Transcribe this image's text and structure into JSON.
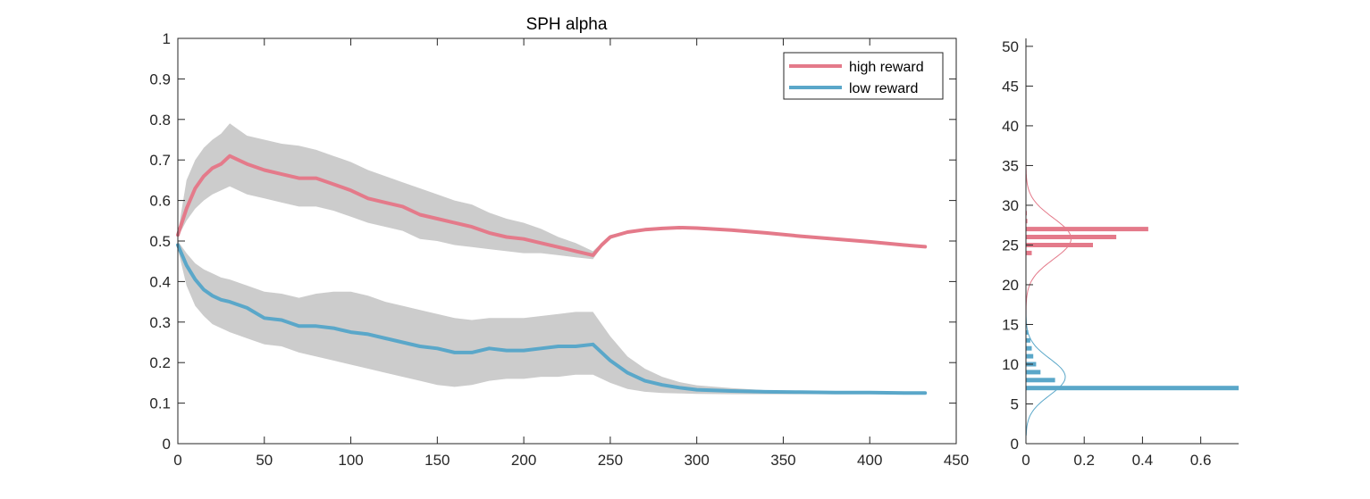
{
  "colors": {
    "high": "#e47a8a",
    "low": "#5aa7c9",
    "band": "#cccccc",
    "axis": "#262626"
  },
  "chart_data": [
    {
      "type": "line",
      "title": "SPH  alpha",
      "xlabel": "",
      "ylabel": "",
      "xlim": [
        0,
        450
      ],
      "ylim": [
        0,
        1
      ],
      "xticks": [
        0,
        50,
        100,
        150,
        200,
        250,
        300,
        350,
        400,
        450
      ],
      "yticks": [
        0,
        0.1,
        0.2,
        0.3,
        0.4,
        0.5,
        0.6,
        0.7,
        0.8,
        0.9,
        1
      ],
      "grid": false,
      "legend": "top-right",
      "series": [
        {
          "name": "high reward",
          "color_key": "high",
          "x": [
            0,
            5,
            10,
            15,
            20,
            25,
            30,
            35,
            40,
            50,
            60,
            70,
            80,
            90,
            100,
            110,
            120,
            130,
            140,
            150,
            160,
            170,
            180,
            190,
            200,
            210,
            220,
            230,
            240,
            245,
            250,
            260,
            270,
            280,
            290,
            300,
            320,
            340,
            360,
            380,
            400,
            420,
            432
          ],
          "y": [
            0.515,
            0.58,
            0.63,
            0.66,
            0.68,
            0.69,
            0.71,
            0.7,
            0.69,
            0.675,
            0.665,
            0.655,
            0.655,
            0.64,
            0.625,
            0.605,
            0.595,
            0.585,
            0.565,
            0.555,
            0.545,
            0.535,
            0.52,
            0.51,
            0.505,
            0.495,
            0.485,
            0.475,
            0.465,
            0.49,
            0.51,
            0.522,
            0.528,
            0.531,
            0.533,
            0.532,
            0.527,
            0.52,
            0.512,
            0.505,
            0.498,
            0.49,
            0.486
          ],
          "band_upper": [
            0.52,
            0.65,
            0.7,
            0.73,
            0.75,
            0.765,
            0.79,
            0.775,
            0.76,
            0.75,
            0.74,
            0.735,
            0.725,
            0.71,
            0.695,
            0.675,
            0.66,
            0.645,
            0.63,
            0.615,
            0.6,
            0.59,
            0.57,
            0.555,
            0.545,
            0.53,
            0.51,
            0.495,
            0.475,
            0.495,
            0.515,
            0.525,
            0.53,
            0.533,
            0.535,
            0.534,
            0.528,
            0.521,
            0.513,
            0.506,
            0.499,
            0.491,
            0.487
          ],
          "band_lower": [
            0.51,
            0.55,
            0.58,
            0.6,
            0.615,
            0.625,
            0.635,
            0.625,
            0.615,
            0.605,
            0.595,
            0.585,
            0.585,
            0.575,
            0.56,
            0.545,
            0.535,
            0.525,
            0.505,
            0.5,
            0.49,
            0.485,
            0.48,
            0.475,
            0.47,
            0.47,
            0.465,
            0.46,
            0.455,
            0.485,
            0.505,
            0.519,
            0.526,
            0.529,
            0.531,
            0.53,
            0.526,
            0.519,
            0.511,
            0.504,
            0.497,
            0.489,
            0.485
          ]
        },
        {
          "name": "low reward",
          "color_key": "low",
          "x": [
            0,
            5,
            10,
            15,
            20,
            25,
            30,
            40,
            50,
            60,
            70,
            80,
            90,
            100,
            110,
            120,
            130,
            140,
            150,
            160,
            170,
            180,
            190,
            200,
            210,
            220,
            230,
            240,
            250,
            260,
            270,
            280,
            290,
            300,
            320,
            340,
            360,
            380,
            400,
            420,
            432
          ],
          "y": [
            0.49,
            0.44,
            0.405,
            0.38,
            0.365,
            0.355,
            0.35,
            0.335,
            0.31,
            0.305,
            0.29,
            0.29,
            0.285,
            0.275,
            0.27,
            0.26,
            0.25,
            0.24,
            0.235,
            0.225,
            0.225,
            0.235,
            0.23,
            0.23,
            0.235,
            0.24,
            0.24,
            0.245,
            0.205,
            0.175,
            0.155,
            0.145,
            0.138,
            0.133,
            0.13,
            0.128,
            0.127,
            0.126,
            0.126,
            0.125,
            0.125
          ],
          "band_upper": [
            0.5,
            0.47,
            0.445,
            0.43,
            0.42,
            0.41,
            0.405,
            0.39,
            0.375,
            0.37,
            0.36,
            0.37,
            0.375,
            0.375,
            0.365,
            0.35,
            0.34,
            0.33,
            0.32,
            0.31,
            0.305,
            0.31,
            0.31,
            0.31,
            0.315,
            0.32,
            0.325,
            0.325,
            0.265,
            0.215,
            0.185,
            0.165,
            0.152,
            0.144,
            0.137,
            0.132,
            0.13,
            0.128,
            0.127,
            0.126,
            0.126
          ],
          "band_lower": [
            0.48,
            0.39,
            0.34,
            0.315,
            0.295,
            0.285,
            0.275,
            0.26,
            0.245,
            0.24,
            0.225,
            0.215,
            0.205,
            0.195,
            0.185,
            0.175,
            0.165,
            0.155,
            0.145,
            0.14,
            0.145,
            0.155,
            0.16,
            0.16,
            0.165,
            0.165,
            0.17,
            0.17,
            0.15,
            0.135,
            0.128,
            0.125,
            0.124,
            0.123,
            0.122,
            0.122,
            0.122,
            0.122,
            0.122,
            0.122,
            0.122
          ]
        }
      ]
    },
    {
      "type": "bar",
      "orientation": "horizontal",
      "title": "",
      "xlabel": "",
      "ylabel": "",
      "xlim": [
        0,
        0.73
      ],
      "ylim": [
        0,
        51
      ],
      "xticks": [
        0,
        0.2,
        0.4,
        0.6
      ],
      "xtick_labels": [
        "0",
        "0.2",
        "0.4",
        "0.6"
      ],
      "yticks": [
        0,
        5,
        10,
        15,
        20,
        25,
        30,
        35,
        40,
        45,
        50
      ],
      "grid": false,
      "series": [
        {
          "color_key": "high",
          "bins": [
            24,
            25,
            26,
            27,
            28,
            29
          ],
          "values": [
            0.02,
            0.23,
            0.31,
            0.42,
            0.005,
            0.003
          ],
          "fit_mean": 25.8,
          "fit_sd": 2.6,
          "fit_peak": 0.155
        },
        {
          "color_key": "low",
          "bins": [
            7,
            8,
            9,
            10,
            11,
            12,
            13,
            14
          ],
          "values": [
            0.73,
            0.1,
            0.05,
            0.035,
            0.025,
            0.02,
            0.015,
            0.008
          ],
          "fit_mean": 8.4,
          "fit_sd": 2.3,
          "fit_peak": 0.135
        }
      ]
    }
  ],
  "legend": {
    "high_label": "high reward",
    "low_label": "low reward"
  }
}
